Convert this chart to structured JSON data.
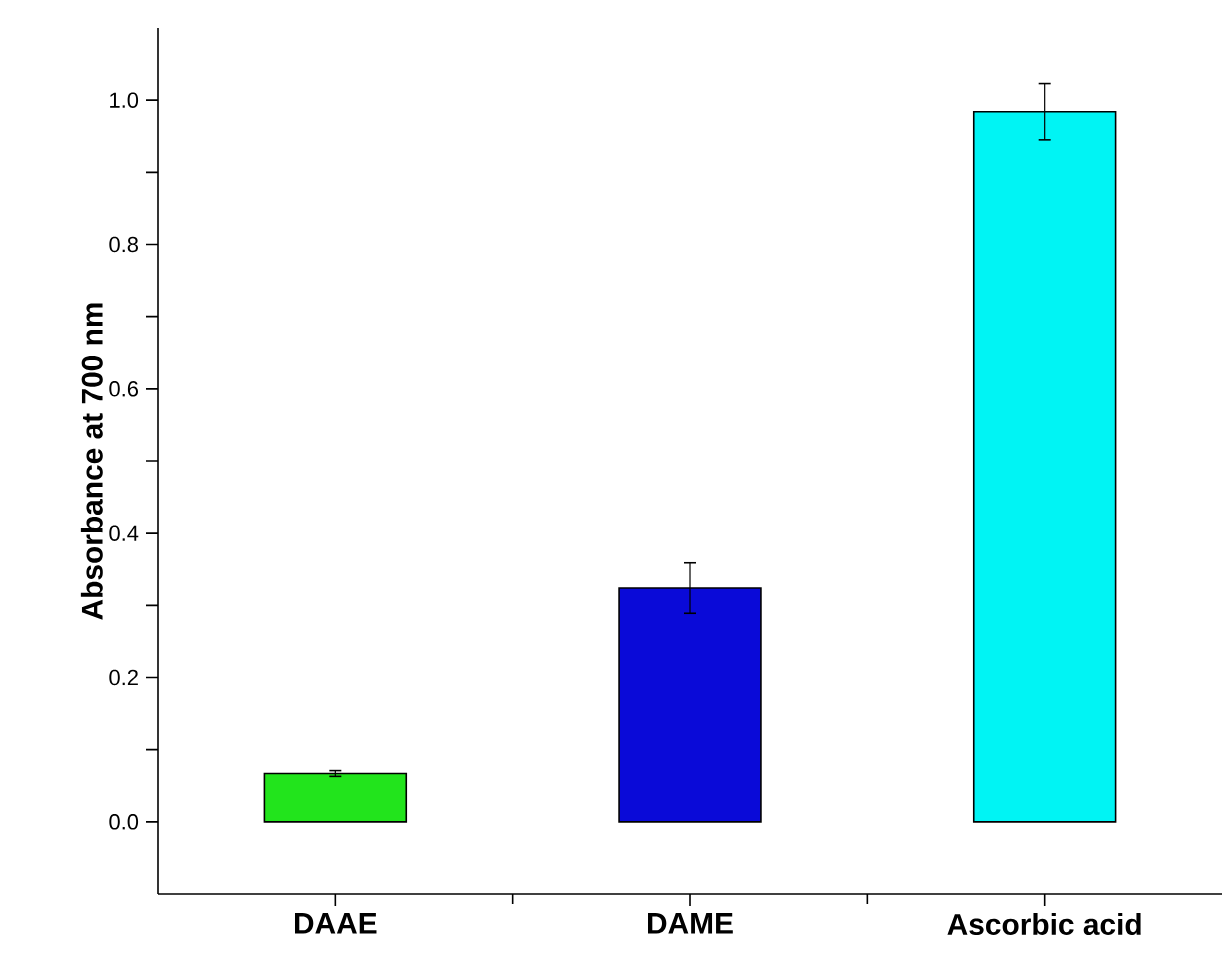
{
  "chart_data": {
    "type": "bar",
    "ylabel": "Absorbance at 700 nm",
    "categories": [
      "DAAE",
      "DAME",
      "Ascorbic acid"
    ],
    "values": [
      0.067,
      0.324,
      0.984
    ],
    "errors": [
      0.004,
      0.035,
      0.039
    ],
    "colors": [
      "#22e41c",
      "#0a0ad8",
      "#00f4f4"
    ],
    "ylim": [
      -0.1,
      1.1
    ],
    "yticks": [
      {
        "value": 0.0,
        "label": "0.0"
      },
      {
        "value": 0.1,
        "label": null
      },
      {
        "value": 0.2,
        "label": "0.2"
      },
      {
        "value": 0.3,
        "label": null
      },
      {
        "value": 0.4,
        "label": "0.4"
      },
      {
        "value": 0.5,
        "label": null
      },
      {
        "value": 0.6,
        "label": "0.6"
      },
      {
        "value": 0.7,
        "label": null
      },
      {
        "value": 0.8,
        "label": "0.8"
      },
      {
        "value": 0.9,
        "label": null
      },
      {
        "value": 1.0,
        "label": "1.0"
      }
    ],
    "grid": false
  }
}
